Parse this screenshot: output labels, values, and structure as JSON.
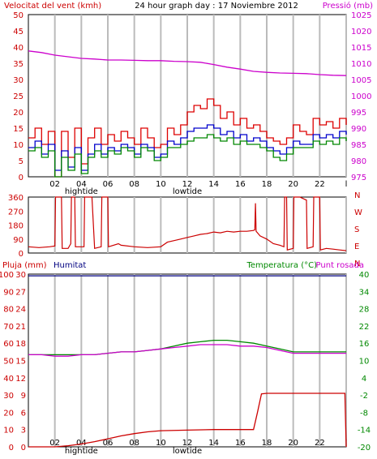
{
  "colors": {
    "wind_label": "#cc0000",
    "pressure_label": "#cc00cc",
    "humidity_label": "#000080",
    "temperature_label": "#008800",
    "dewpoint_label": "#cc00cc",
    "rain_label": "#cc0000",
    "grid": "#bbbbbb",
    "frame": "#000000"
  },
  "chart_data": [
    {
      "type": "line",
      "panel": "wind-pressure",
      "title": "24 hour graph day : 17 Noviembre 2012",
      "left_label": "Velocitat del vent (kmh)",
      "right_label": "Pressió (mb)",
      "x_ticks": [
        "02",
        "04",
        "06",
        "08",
        "10",
        "12",
        "14",
        "16",
        "18",
        "20",
        "22",
        "l"
      ],
      "x_annotations": [
        {
          "text": "hightide",
          "near": "04"
        },
        {
          "text": "lowtide",
          "near": "12"
        }
      ],
      "y_left_ticks": [
        0,
        5,
        10,
        15,
        20,
        25,
        30,
        35,
        40,
        45,
        50
      ],
      "y_left_range": [
        0,
        50
      ],
      "y_right_ticks": [
        975,
        980,
        985,
        990,
        995,
        1000,
        1005,
        1010,
        1015,
        1020,
        1025
      ],
      "y_right_range": [
        975,
        1025
      ],
      "x_range": [
        0,
        24
      ],
      "series": [
        {
          "name": "Pressió (mb)",
          "color": "#cc00cc",
          "axis": "right",
          "x": [
            0,
            1,
            2,
            3,
            4,
            5,
            6,
            7,
            8,
            9,
            10,
            11,
            12,
            13,
            14,
            15,
            16,
            17,
            18,
            19,
            20,
            21,
            22,
            23,
            24
          ],
          "values": [
            1013.8,
            1013.3,
            1012.5,
            1012.0,
            1011.5,
            1011.3,
            1011.0,
            1011.0,
            1010.9,
            1010.8,
            1010.8,
            1010.6,
            1010.5,
            1010.3,
            1009.6,
            1008.8,
            1008.2,
            1007.5,
            1007.2,
            1007.0,
            1006.9,
            1006.8,
            1006.5,
            1006.3,
            1006.2
          ]
        },
        {
          "name": "Gust",
          "color": "#dd0000",
          "axis": "left",
          "x": [
            0,
            0.5,
            1,
            1.5,
            2,
            2.5,
            3,
            3.5,
            4,
            4.5,
            5,
            5.5,
            6,
            6.5,
            7,
            7.5,
            8,
            8.5,
            9,
            9.5,
            10,
            10.5,
            11,
            11.5,
            12,
            12.5,
            13,
            13.5,
            14,
            14.5,
            15,
            15.5,
            16,
            16.5,
            17,
            17.5,
            18,
            18.5,
            19,
            19.5,
            20,
            20.5,
            21,
            21.5,
            22,
            22.5,
            23,
            23.5,
            24
          ],
          "values": [
            12,
            15,
            10,
            14,
            0,
            14,
            6,
            15,
            4,
            12,
            15,
            10,
            13,
            11,
            14,
            12,
            10,
            15,
            12,
            9,
            10,
            15,
            13,
            16,
            20,
            22,
            21,
            24,
            22,
            18,
            20,
            16,
            18,
            15,
            16,
            14,
            12,
            11,
            10,
            12,
            16,
            14,
            13,
            18,
            16,
            17,
            15,
            18,
            16
          ]
        },
        {
          "name": "Velocitat del vent (kmh)",
          "color": "#0000cc",
          "axis": "left",
          "x": [
            0,
            0.5,
            1,
            1.5,
            2,
            2.5,
            3,
            3.5,
            4,
            4.5,
            5,
            5.5,
            6,
            6.5,
            7,
            7.5,
            8,
            8.5,
            9,
            9.5,
            10,
            10.5,
            11,
            11.5,
            12,
            12.5,
            13,
            13.5,
            14,
            14.5,
            15,
            15.5,
            16,
            16.5,
            17,
            17.5,
            18,
            18.5,
            19,
            19.5,
            20,
            20.5,
            21,
            21.5,
            22,
            22.5,
            23,
            23.5,
            24
          ],
          "values": [
            9,
            11,
            7,
            10,
            2,
            8,
            3,
            9,
            2,
            7,
            10,
            7,
            9,
            8,
            10,
            9,
            7,
            10,
            9,
            6,
            7,
            11,
            10,
            12,
            14,
            15,
            15,
            16,
            15,
            13,
            14,
            12,
            13,
            11,
            12,
            11,
            9,
            8,
            7,
            9,
            11,
            10,
            10,
            13,
            12,
            13,
            12,
            14,
            13
          ]
        },
        {
          "name": "Min",
          "color": "#008800",
          "axis": "left",
          "x": [
            0,
            0.5,
            1,
            1.5,
            2,
            2.5,
            3,
            3.5,
            4,
            4.5,
            5,
            5.5,
            6,
            6.5,
            7,
            7.5,
            8,
            8.5,
            9,
            9.5,
            10,
            10.5,
            11,
            11.5,
            12,
            12.5,
            13,
            13.5,
            14,
            14.5,
            15,
            15.5,
            16,
            16.5,
            17,
            17.5,
            18,
            18.5,
            19,
            19.5,
            20,
            20.5,
            21,
            21.5,
            22,
            22.5,
            23,
            23.5,
            24
          ],
          "values": [
            8,
            9,
            6,
            8,
            0,
            6,
            2,
            7,
            1,
            6,
            8,
            6,
            8,
            7,
            9,
            8,
            6,
            9,
            8,
            5,
            6,
            9,
            9,
            10,
            11,
            12,
            12,
            13,
            12,
            11,
            12,
            10,
            11,
            10,
            10,
            9,
            8,
            6,
            5,
            7,
            9,
            9,
            9,
            11,
            10,
            11,
            10,
            12,
            11
          ]
        }
      ]
    },
    {
      "type": "line",
      "panel": "wind-direction",
      "right_labels": [
        "N",
        "W",
        "S",
        "E",
        "N"
      ],
      "y_ticks": [
        0,
        90,
        180,
        270,
        360
      ],
      "y_range": [
        0,
        360
      ],
      "x_range": [
        0,
        24
      ],
      "series": [
        {
          "name": "Direction",
          "color": "#cc0000",
          "x": [
            0,
            0.8,
            1.6,
            2.0,
            2.05,
            2.5,
            2.55,
            3.0,
            3.2,
            3.25,
            3.5,
            3.55,
            4.2,
            4.25,
            4.8,
            5.0,
            5.5,
            5.55,
            6.0,
            6.05,
            6.8,
            7,
            8,
            9,
            10,
            10.5,
            11,
            11.5,
            12,
            12.5,
            13,
            13.5,
            14,
            14.5,
            15,
            15.5,
            16,
            16.5,
            17,
            17.1,
            17.15,
            17.2,
            17.5,
            18,
            18.5,
            19,
            19.3,
            19.35,
            19.5,
            19.55,
            20,
            20.05,
            20.5,
            21,
            21.05,
            21.5,
            21.55,
            22,
            22.05,
            22.5,
            23,
            23.5,
            24
          ],
          "values": [
            40,
            35,
            40,
            45,
            360,
            360,
            30,
            30,
            60,
            360,
            360,
            40,
            40,
            360,
            360,
            30,
            40,
            360,
            360,
            40,
            60,
            50,
            40,
            35,
            40,
            70,
            80,
            90,
            100,
            110,
            120,
            125,
            135,
            130,
            140,
            135,
            140,
            140,
            145,
            150,
            320,
            140,
            110,
            90,
            60,
            50,
            40,
            360,
            360,
            20,
            30,
            360,
            360,
            340,
            30,
            40,
            360,
            360,
            20,
            30,
            25,
            20,
            15
          ]
        }
      ]
    },
    {
      "type": "line",
      "panel": "rain-humidity-temperature",
      "labels": {
        "rain": "Pluja (mm)",
        "humidity": "Humitat",
        "temperature": "Temperatura (°C)",
        "dewpoint": "Punt rosada"
      },
      "x_ticks": [
        "02",
        "04",
        "06",
        "08",
        "10",
        "12",
        "14",
        "16",
        "18",
        "20",
        "22",
        "l"
      ],
      "x_annotations": [
        {
          "text": "hightide",
          "near": "04"
        },
        {
          "text": "lowtide",
          "near": "12"
        }
      ],
      "y_left_outer_ticks": [
        0,
        10,
        20,
        30,
        40,
        50,
        60,
        70,
        80,
        90,
        100
      ],
      "y_left_outer_range": [
        0,
        100
      ],
      "y_left_inner_ticks": [
        0,
        3,
        6,
        9,
        12,
        15,
        18,
        21,
        24,
        27,
        30
      ],
      "y_left_inner_range": [
        0,
        30
      ],
      "y_right_ticks": [
        -20,
        -14,
        -8,
        -2,
        4,
        10,
        16,
        22,
        28,
        34,
        40
      ],
      "y_right_range": [
        -20,
        40
      ],
      "x_range": [
        0,
        24
      ],
      "series": [
        {
          "name": "Humitat",
          "color": "#000080",
          "axis": "left_outer",
          "x": [
            0,
            24
          ],
          "values": [
            99,
            99
          ]
        },
        {
          "name": "Temperatura (°C)",
          "color": "#008800",
          "axis": "right",
          "x": [
            0,
            1,
            2,
            3,
            4,
            5,
            6,
            7,
            8,
            9,
            10,
            11,
            12,
            13,
            14,
            15,
            16,
            17,
            18,
            19,
            20,
            21,
            22,
            23,
            24
          ],
          "values": [
            12,
            12,
            12,
            12,
            12,
            12,
            12.5,
            13,
            13,
            13.5,
            14,
            15,
            16,
            16.5,
            17,
            17,
            16.5,
            16,
            15,
            14,
            13,
            13,
            13,
            13,
            13
          ]
        },
        {
          "name": "Punt rosada",
          "color": "#cc00cc",
          "axis": "right",
          "x": [
            0,
            1,
            2,
            3,
            4,
            5,
            6,
            7,
            8,
            9,
            10,
            11,
            12,
            13,
            14,
            15,
            16,
            17,
            18,
            19,
            20,
            21,
            22,
            23,
            24
          ],
          "values": [
            12,
            12,
            11.5,
            11.5,
            12,
            12,
            12.5,
            13,
            13,
            13.5,
            14,
            14.5,
            15,
            15.5,
            15.5,
            15.5,
            15,
            15,
            14.5,
            13.5,
            12.5,
            12.5,
            12.5,
            12.5,
            12.5
          ]
        },
        {
          "name": "Pluja (mm)",
          "color": "#cc0000",
          "axis": "left_inner",
          "x": [
            0,
            2,
            3,
            4,
            5,
            6,
            7,
            8,
            9,
            10,
            12,
            14,
            16,
            17.0,
            17.3,
            17.6,
            18,
            20,
            22,
            23.9,
            24
          ],
          "values": [
            0,
            0,
            0.2,
            0.5,
            0.9,
            1.4,
            1.9,
            2.3,
            2.6,
            2.8,
            2.9,
            3.0,
            3.0,
            3.0,
            6.0,
            9.2,
            9.3,
            9.3,
            9.3,
            9.3,
            0
          ]
        }
      ]
    }
  ]
}
